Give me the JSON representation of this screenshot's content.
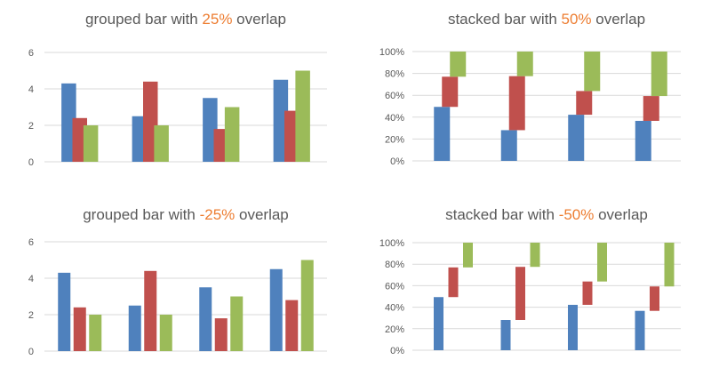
{
  "colors": {
    "background": "#ffffff",
    "title_text": "#595959",
    "title_highlight": "#ED7D31",
    "axis_text": "#595959",
    "gridline": "#D9D9D9",
    "series_blue": "#4F81BD",
    "series_red": "#C0504D",
    "series_green": "#9BBB59"
  },
  "chart_data": [
    {
      "type": "bar",
      "subtype": "grouped",
      "overlap": "25%",
      "title": "grouped bar with 25% overlap",
      "title_parts": {
        "prefix": "grouped bar with ",
        "highlight": "25%",
        "suffix": " overlap"
      },
      "n_groups": 4,
      "series": [
        {
          "name": "blue",
          "color": "#4F81BD",
          "values": [
            4.3,
            2.5,
            3.5,
            4.5
          ]
        },
        {
          "name": "red",
          "color": "#C0504D",
          "values": [
            2.4,
            4.4,
            1.8,
            2.8
          ]
        },
        {
          "name": "green",
          "color": "#9BBB59",
          "values": [
            2.0,
            2.0,
            3.0,
            5.0
          ]
        }
      ],
      "y_axis": {
        "range": [
          0,
          6
        ],
        "ticks": [
          0,
          2,
          4,
          6
        ],
        "tick_labels": [
          "0",
          "2",
          "4",
          "6"
        ]
      },
      "grid": true,
      "legend": "none",
      "x_axis_labels": "none"
    },
    {
      "type": "bar",
      "subtype": "stacked",
      "overlap": "50%",
      "title": "stacked bar with 50% overlap",
      "title_parts": {
        "prefix": "stacked bar with ",
        "highlight": "50%",
        "suffix": " overlap"
      },
      "n_groups": 4,
      "series": [
        {
          "name": "blue",
          "color": "#4F81BD",
          "values": [
            49.4,
            28.1,
            42.2,
            36.6
          ]
        },
        {
          "name": "red",
          "color": "#C0504D",
          "values": [
            27.6,
            49.4,
            21.7,
            22.7
          ]
        },
        {
          "name": "green",
          "color": "#9BBB59",
          "values": [
            23.0,
            22.5,
            36.1,
            40.7
          ]
        }
      ],
      "y_axis": {
        "range": [
          0,
          100
        ],
        "ticks": [
          0,
          20,
          40,
          60,
          80,
          100
        ],
        "tick_labels": [
          "0%",
          "20%",
          "40%",
          "60%",
          "80%",
          "100%"
        ]
      },
      "grid": true,
      "legend": "none",
      "x_axis_labels": "none"
    },
    {
      "type": "bar",
      "subtype": "grouped",
      "overlap": "-25%",
      "title": "grouped bar with -25% overlap",
      "title_parts": {
        "prefix": "grouped bar with ",
        "highlight": "-25%",
        "suffix": " overlap"
      },
      "n_groups": 4,
      "series": [
        {
          "name": "blue",
          "color": "#4F81BD",
          "values": [
            4.3,
            2.5,
            3.5,
            4.5
          ]
        },
        {
          "name": "red",
          "color": "#C0504D",
          "values": [
            2.4,
            4.4,
            1.8,
            2.8
          ]
        },
        {
          "name": "green",
          "color": "#9BBB59",
          "values": [
            2.0,
            2.0,
            3.0,
            5.0
          ]
        }
      ],
      "y_axis": {
        "range": [
          0,
          6
        ],
        "ticks": [
          0,
          2,
          4,
          6
        ],
        "tick_labels": [
          "0",
          "2",
          "4",
          "6"
        ]
      },
      "grid": true,
      "legend": "none",
      "x_axis_labels": "none"
    },
    {
      "type": "bar",
      "subtype": "stacked",
      "overlap": "-50%",
      "title": "stacked bar with -50% overlap",
      "title_parts": {
        "prefix": "stacked bar with ",
        "highlight": "-50%",
        "suffix": " overlap"
      },
      "n_groups": 4,
      "series": [
        {
          "name": "blue",
          "color": "#4F81BD",
          "values": [
            49.4,
            28.1,
            42.2,
            36.6
          ]
        },
        {
          "name": "red",
          "color": "#C0504D",
          "values": [
            27.6,
            49.4,
            21.7,
            22.7
          ]
        },
        {
          "name": "green",
          "color": "#9BBB59",
          "values": [
            23.0,
            22.5,
            36.1,
            40.7
          ]
        }
      ],
      "y_axis": {
        "range": [
          0,
          100
        ],
        "ticks": [
          0,
          20,
          40,
          60,
          80,
          100
        ],
        "tick_labels": [
          "0%",
          "20%",
          "40%",
          "60%",
          "80%",
          "100%"
        ]
      },
      "grid": true,
      "legend": "none",
      "x_axis_labels": "none"
    }
  ]
}
